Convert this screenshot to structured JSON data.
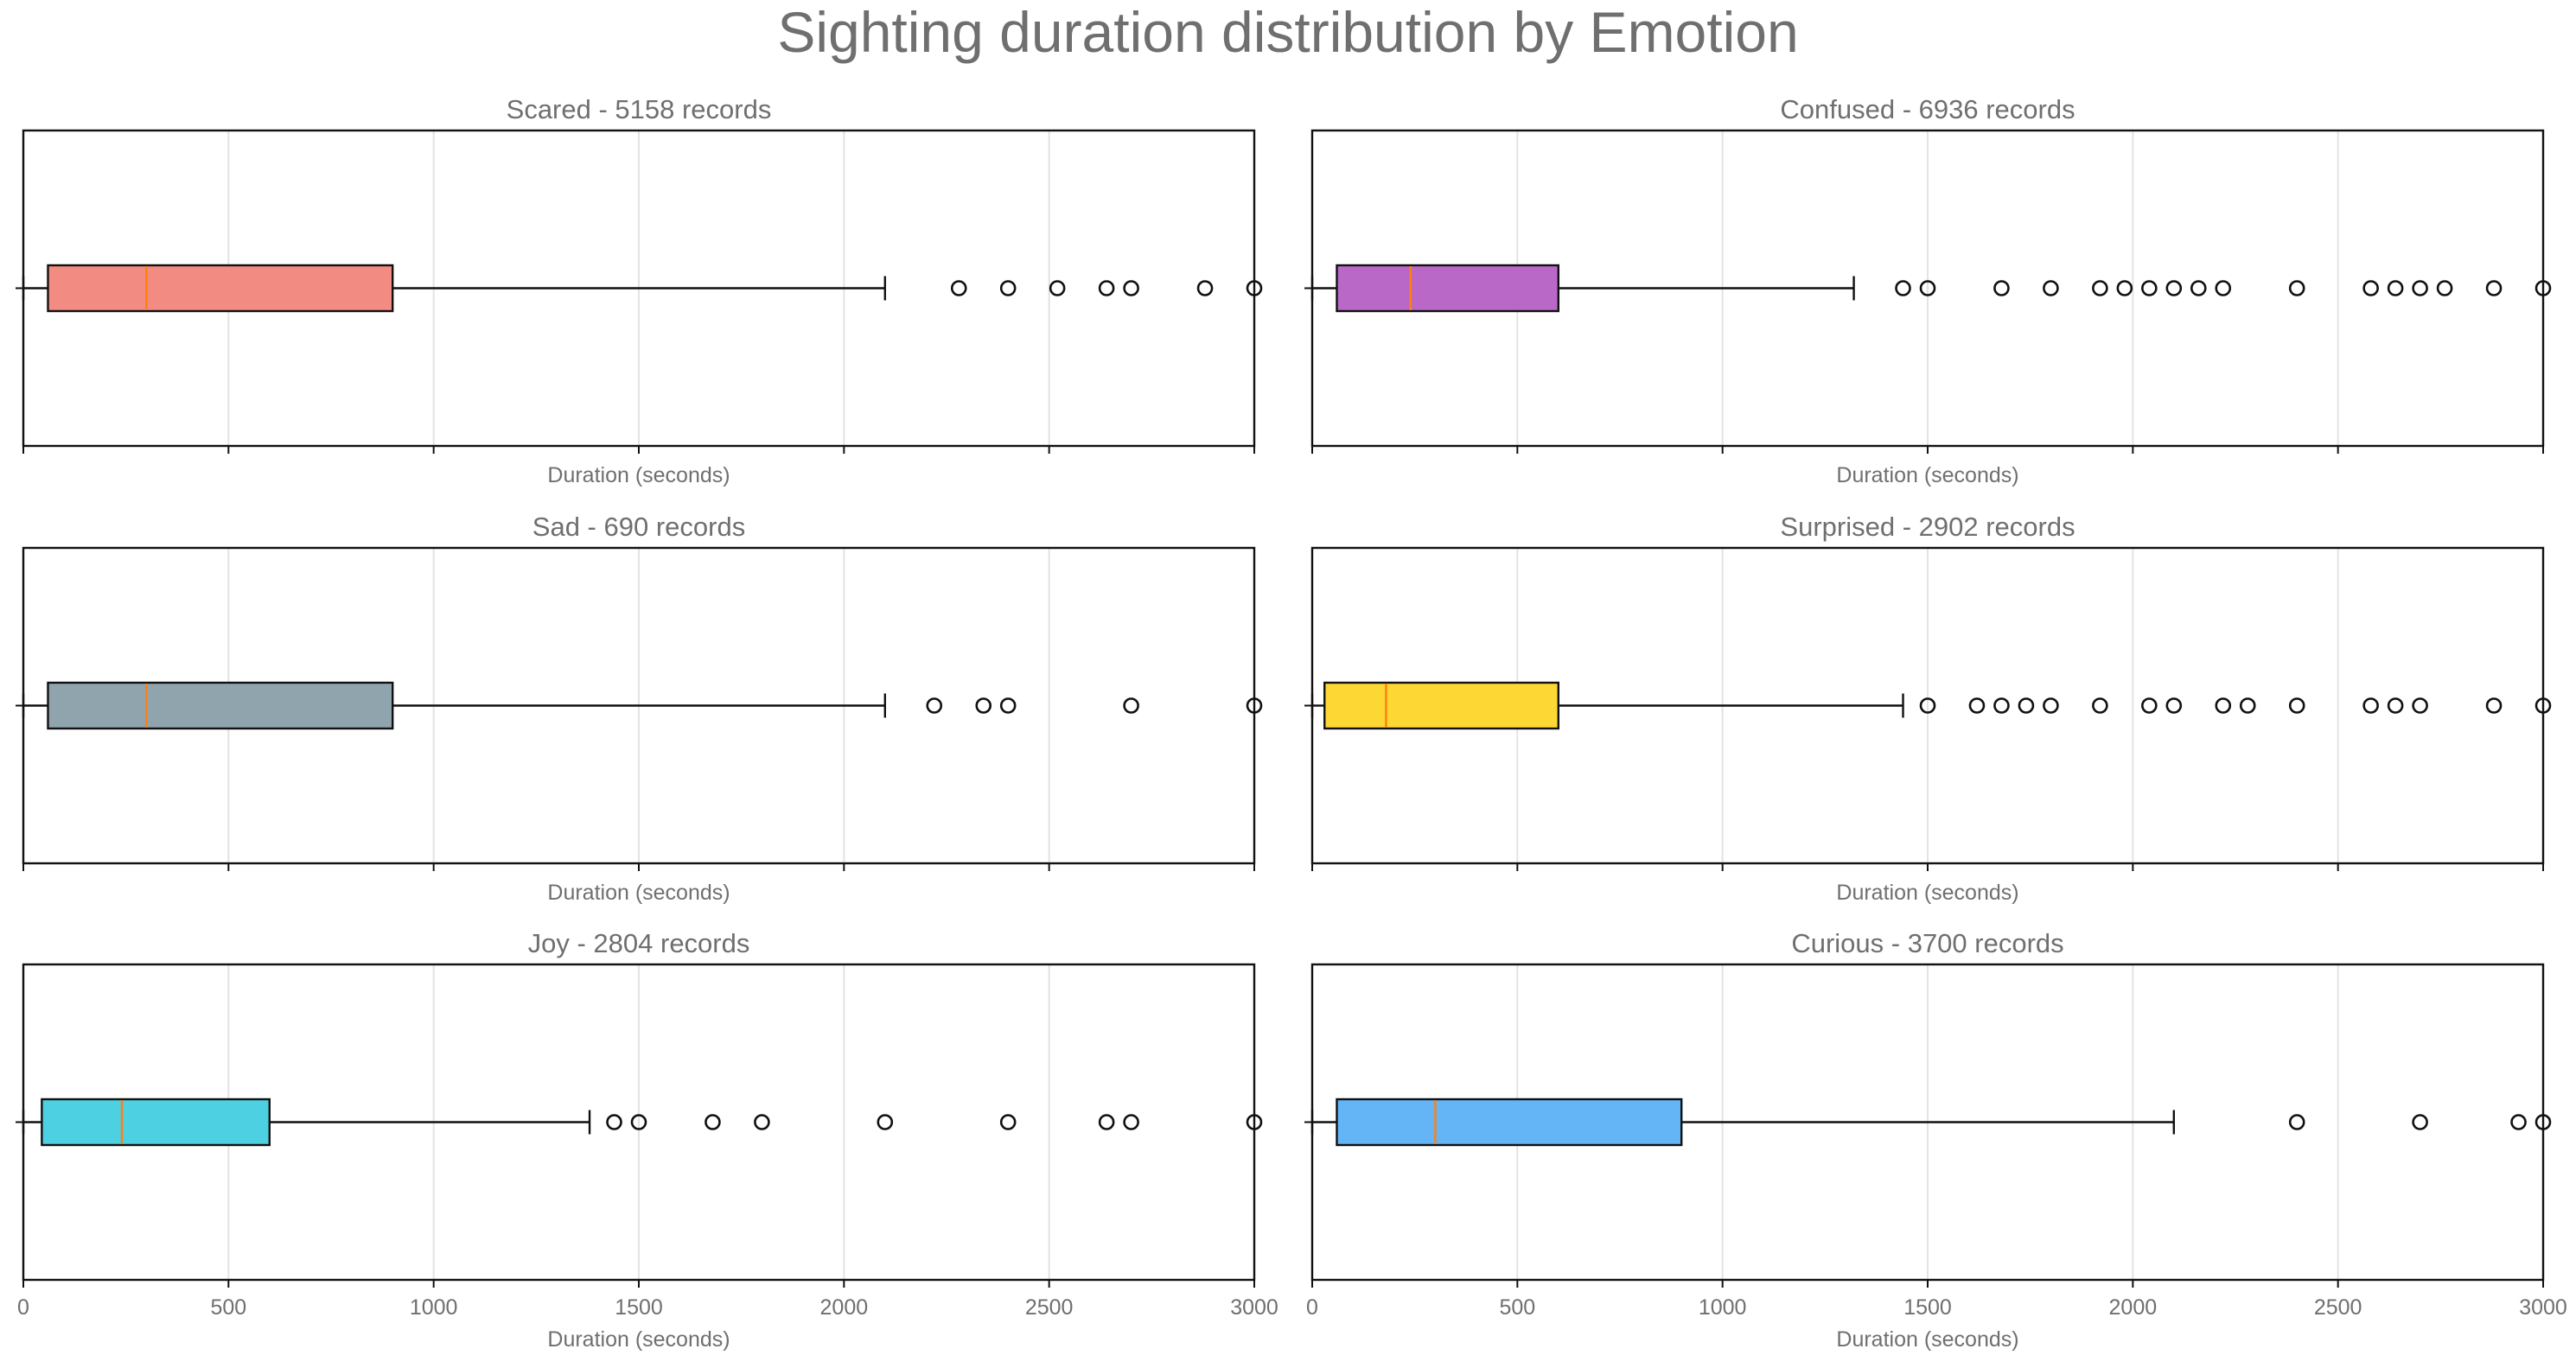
{
  "title": "Sighting duration distribution by Emotion",
  "chart_data": {
    "type": "boxplot",
    "title": "Sighting duration distribution by Emotion",
    "layout": "3 rows x 2 columns, shared x axis",
    "xlim": [
      0,
      3000
    ],
    "xticks": [
      "0",
      "500",
      "1000",
      "1500",
      "2000",
      "2500",
      "3000"
    ],
    "xtick_values": [
      0,
      500,
      1000,
      1500,
      2000,
      2500,
      3000
    ],
    "xlabel": "Duration (seconds)",
    "grid": "vertical gridlines",
    "panels": [
      {
        "title": "Scared - 5158 records",
        "color": "#f28b82",
        "whisker_low": 0,
        "q1": 60,
        "median": 300,
        "q3": 900,
        "whisker_high": 2100,
        "outliers": [
          2280,
          2400,
          2520,
          2640,
          2700,
          2880,
          3000
        ]
      },
      {
        "title": "Confused - 6936 records",
        "color": "#ba68c8",
        "whisker_low": 0,
        "q1": 60,
        "median": 240,
        "q3": 600,
        "whisker_high": 1320,
        "outliers": [
          1440,
          1500,
          1680,
          1800,
          1920,
          1980,
          2040,
          2100,
          2160,
          2220,
          2400,
          2580,
          2640,
          2700,
          2760,
          2880,
          3000
        ]
      },
      {
        "title": "Sad - 690 records",
        "color": "#90a4ae",
        "whisker_low": 0,
        "q1": 60,
        "median": 300,
        "q3": 900,
        "whisker_high": 2100,
        "outliers": [
          2220,
          2340,
          2400,
          2700,
          3000
        ]
      },
      {
        "title": "Surprised - 2902 records",
        "color": "#fdd835",
        "whisker_low": 0,
        "q1": 30,
        "median": 180,
        "q3": 600,
        "whisker_high": 1440,
        "outliers": [
          1500,
          1620,
          1680,
          1740,
          1800,
          1920,
          2040,
          2100,
          2220,
          2280,
          2400,
          2580,
          2640,
          2700,
          2880,
          3000
        ]
      },
      {
        "title": "Joy - 2804 records",
        "color": "#4dd0e1",
        "whisker_low": 0,
        "q1": 45,
        "median": 240,
        "q3": 600,
        "whisker_high": 1380,
        "outliers": [
          1440,
          1500,
          1680,
          1800,
          2100,
          2400,
          2640,
          2700,
          3000
        ]
      },
      {
        "title": "Curious - 3700 records",
        "color": "#64b5f6",
        "whisker_low": 0,
        "q1": 60,
        "median": 300,
        "q3": 900,
        "whisker_high": 2100,
        "outliers": [
          2400,
          2700,
          2940,
          3000
        ]
      }
    ]
  }
}
